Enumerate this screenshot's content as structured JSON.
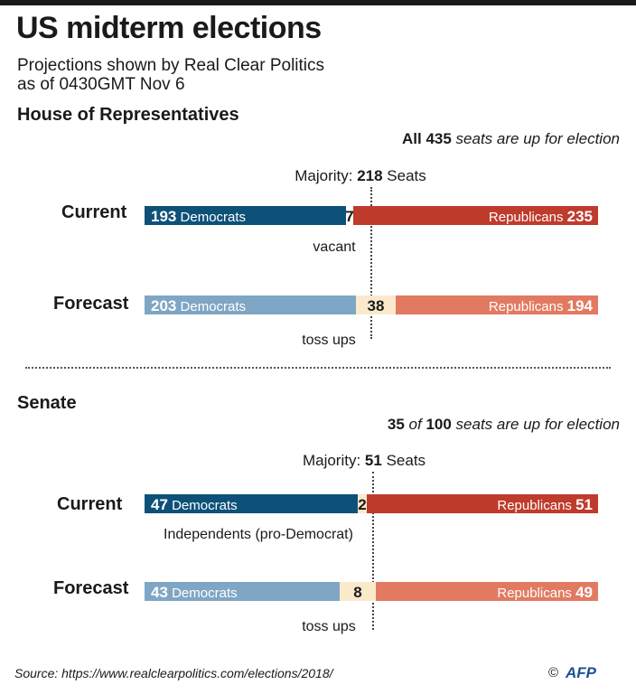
{
  "title": "US midterm elections",
  "subtitle_line1": "Projections shown by Real Clear Politics",
  "subtitle_line2": "as of 0430GMT Nov 6",
  "house": {
    "heading": "House of Representatives",
    "seats_note": {
      "strong": "All 435",
      "rest": " seats are up for election"
    },
    "majority": {
      "prefix": "Majority: ",
      "value": "218",
      "suffix": " Seats"
    },
    "current_label": "Current",
    "forecast_label": "Forecast",
    "current_annotation": "vacant",
    "forecast_annotation": "toss ups"
  },
  "senate": {
    "heading": "Senate",
    "seats_note": {
      "num1": "35",
      "of": " of ",
      "num2": "100",
      "rest": " seats are up for election"
    },
    "majority": {
      "prefix": "Majority: ",
      "value": "51",
      "suffix": " Seats"
    },
    "current_label": "Current",
    "forecast_label": "Forecast",
    "current_annotation": "Independents (pro-Democrat)",
    "forecast_annotation": "toss ups"
  },
  "source": "Source: https://www.realclearpolitics.com/elections/2018/",
  "copyright": "©",
  "logo": "AFP",
  "colors": {
    "dem_current": "#0d5179",
    "rep_current": "#bf3b2c",
    "dem_forecast": "#7fa6c4",
    "rep_forecast": "#e27a62",
    "tossup": "#fbe9cc",
    "gap": "#ffffff"
  },
  "chart_data": [
    {
      "type": "bar",
      "title": "House of Representatives",
      "total": 435,
      "majority": 218,
      "rows": [
        {
          "name": "Current",
          "segments": [
            {
              "label": "Democrats",
              "value": 193,
              "kind": "dem_current"
            },
            {
              "label": "vacant",
              "value": 7,
              "kind": "gap"
            },
            {
              "label": "Republicans",
              "value": 235,
              "kind": "rep_current"
            }
          ]
        },
        {
          "name": "Forecast",
          "segments": [
            {
              "label": "Democrats",
              "value": 203,
              "kind": "dem_forecast"
            },
            {
              "label": "toss ups",
              "value": 38,
              "kind": "tossup"
            },
            {
              "label": "Republicans",
              "value": 194,
              "kind": "rep_forecast"
            }
          ]
        }
      ]
    },
    {
      "type": "bar",
      "title": "Senate",
      "total": 100,
      "majority": 51,
      "rows": [
        {
          "name": "Current",
          "segments": [
            {
              "label": "Democrats",
              "value": 47,
              "kind": "dem_current"
            },
            {
              "label": "Independents (pro-Democrat)",
              "value": 2,
              "kind": "tossup"
            },
            {
              "label": "Republicans",
              "value": 51,
              "kind": "rep_current"
            }
          ]
        },
        {
          "name": "Forecast",
          "segments": [
            {
              "label": "Democrats",
              "value": 43,
              "kind": "dem_forecast"
            },
            {
              "label": "toss ups",
              "value": 8,
              "kind": "tossup"
            },
            {
              "label": "Republicans",
              "value": 49,
              "kind": "rep_forecast"
            }
          ]
        }
      ]
    }
  ]
}
